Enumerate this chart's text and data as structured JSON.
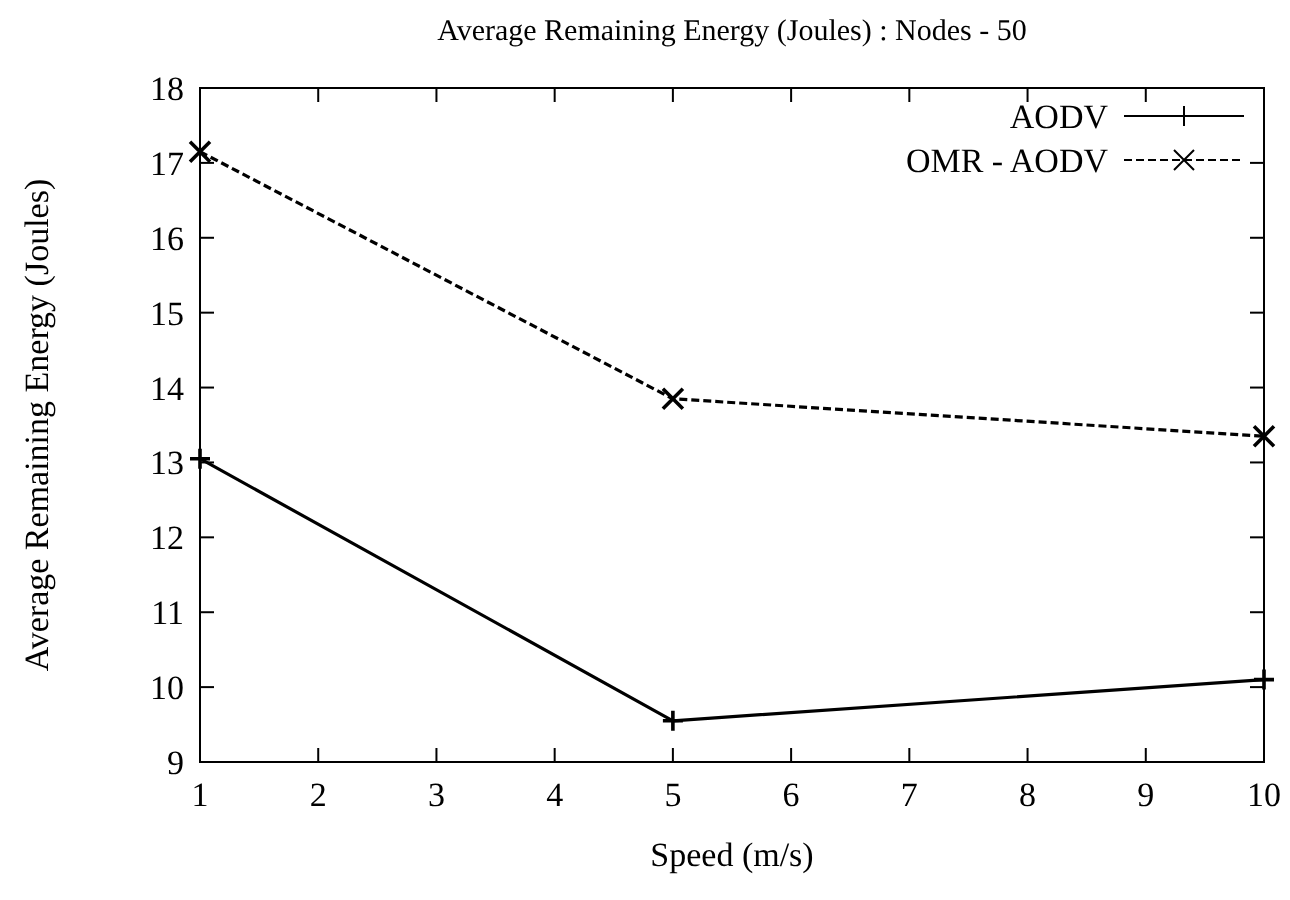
{
  "chart_data": {
    "type": "line",
    "title": "Average Remaining Energy (Joules) : Nodes - 50",
    "xlabel": "Speed (m/s)",
    "ylabel": "Average Remaining Energy (Joules)",
    "x": [
      1,
      5,
      10
    ],
    "series": [
      {
        "name": "AODV",
        "color": "#000000",
        "values": [
          13.05,
          9.55,
          10.1
        ],
        "marker": "plus",
        "line_style": "solid"
      },
      {
        "name": "OMR - AODV",
        "color": "#000000",
        "values": [
          17.15,
          13.85,
          13.35
        ],
        "marker": "cross",
        "line_style": "dashed"
      }
    ],
    "xlim": [
      1,
      10
    ],
    "xticks": [
      1,
      2,
      3,
      4,
      5,
      6,
      7,
      8,
      9,
      10
    ],
    "ylim": [
      9,
      18
    ],
    "yticks": [
      9,
      10,
      11,
      12,
      13,
      14,
      15,
      16,
      17,
      18
    ],
    "grid": false,
    "legend": "top right"
  }
}
